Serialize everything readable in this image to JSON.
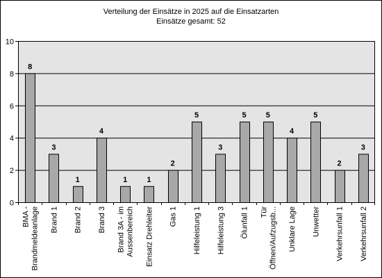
{
  "chart_data": {
    "type": "bar",
    "title": "Verteilung der Einsätze in 2025 auf die Einsatzarten",
    "subtitle": "Einsätze gesamt: 52",
    "categories": [
      [
        "BMA -",
        "Brandmeldeanlage"
      ],
      [
        "Brand 1"
      ],
      [
        "Brand 2"
      ],
      [
        "Brand 3"
      ],
      [
        "Brand 3A - im",
        "Aussenbereich"
      ],
      [
        "Einsatz Drehleiter"
      ],
      [
        "Gas 1"
      ],
      [
        "Hilfeleistung 1"
      ],
      [
        "Hilfeleistung 3"
      ],
      [
        "Ölunfall 1"
      ],
      [
        "Tür",
        "Öffnen/Aufzugsb..."
      ],
      [
        "Unklare Lage"
      ],
      [
        "Unwetter"
      ],
      [
        "Verkehrsunfall 1"
      ],
      [
        "Verkehrsunfall 2"
      ]
    ],
    "values": [
      8,
      3,
      1,
      4,
      1,
      1,
      2,
      5,
      3,
      5,
      5,
      4,
      5,
      2,
      3
    ],
    "ylim": [
      0,
      10
    ],
    "yticks": [
      0,
      2,
      4,
      6,
      8,
      10
    ],
    "grid": true,
    "legend": "none",
    "colors": {
      "bar": "#a8a8a8",
      "plot_bg": "#e4e4e4",
      "axis": "#000000"
    }
  }
}
